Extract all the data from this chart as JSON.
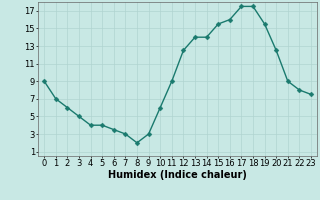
{
  "x": [
    0,
    1,
    2,
    3,
    4,
    5,
    6,
    7,
    8,
    9,
    10,
    11,
    12,
    13,
    14,
    15,
    16,
    17,
    18,
    19,
    20,
    21,
    22,
    23
  ],
  "y": [
    9,
    7,
    6,
    5,
    4,
    4,
    3.5,
    3,
    2,
    3,
    6,
    9,
    12.5,
    14,
    14,
    15.5,
    16,
    17.5,
    17.5,
    15.5,
    12.5,
    9,
    8,
    7.5
  ],
  "line_color": "#1a7a6e",
  "marker_color": "#1a7a6e",
  "bg_color": "#c8e8e4",
  "grid_color": "#b0d4d0",
  "xlabel": "Humidex (Indice chaleur)",
  "xlim": [
    -0.5,
    23.5
  ],
  "ylim": [
    0.5,
    18
  ],
  "yticks": [
    1,
    3,
    5,
    7,
    9,
    11,
    13,
    15,
    17
  ],
  "xticks": [
    0,
    1,
    2,
    3,
    4,
    5,
    6,
    7,
    8,
    9,
    10,
    11,
    12,
    13,
    14,
    15,
    16,
    17,
    18,
    19,
    20,
    21,
    22,
    23
  ],
  "xlabel_fontsize": 7,
  "tick_fontsize": 6,
  "marker_size": 2.5,
  "line_width": 1.0
}
